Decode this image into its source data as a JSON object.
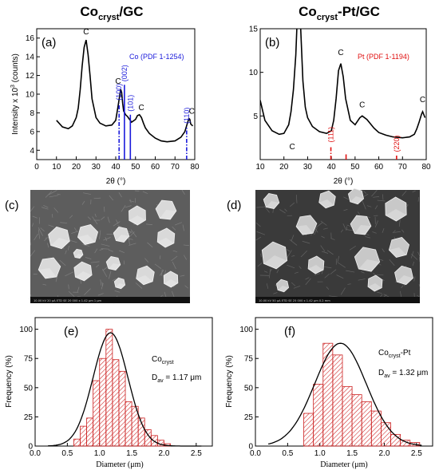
{
  "figure": {
    "left_title": {
      "main": "Co",
      "sub": "cryst",
      "tail": "/GC"
    },
    "right_title": {
      "main": "Co",
      "sub": "cryst",
      "tail": "-Pt/GC"
    },
    "panel_labels": {
      "a": "(a)",
      "b": "(b)",
      "c": "(c)",
      "d": "(d)",
      "e": "(e)",
      "f": "(f)"
    },
    "sem_bars": {
      "c": "10.00 kV   20 μA   ETD   SE   20 000 x   1.42 μm   1 μm",
      "d": "10.00 kV   50 μA   ETD   SE   25 000 x   1.42 μm   0.2 mm"
    },
    "colors": {
      "blue": "#1a1adb",
      "red": "#e01010",
      "hist": "#cc2020"
    }
  },
  "chart_data": [
    {
      "id": "a",
      "type": "line",
      "xlabel": "2θ (°)",
      "ylabel": "Intensity x 10^3 (counts)",
      "xlim": [
        0,
        80
      ],
      "ylim": [
        3,
        17
      ],
      "xticks": [
        0,
        10,
        20,
        30,
        40,
        50,
        60,
        70,
        80
      ],
      "yticks": [
        4,
        6,
        8,
        10,
        12,
        14,
        16
      ],
      "series": [
        {
          "x": [
            10,
            13,
            16,
            18,
            20,
            21,
            22,
            23,
            24,
            25,
            26,
            27,
            28,
            30,
            32,
            35,
            38,
            40,
            41,
            42,
            42.5,
            43,
            43.5,
            44,
            45,
            46,
            48,
            50,
            51,
            52,
            53,
            54,
            55,
            57,
            60,
            63,
            66,
            70,
            73,
            75,
            76,
            77,
            77.5,
            78,
            79
          ],
          "y": [
            7.2,
            6.5,
            6.3,
            6.6,
            7.5,
            8.5,
            10.5,
            13.0,
            15.0,
            15.8,
            14.2,
            12.0,
            9.5,
            7.5,
            6.9,
            6.6,
            6.7,
            7.2,
            8.5,
            9.8,
            10.5,
            10.2,
            9.0,
            8.2,
            7.8,
            7.6,
            7.0,
            7.3,
            7.7,
            7.8,
            7.5,
            6.9,
            6.4,
            5.8,
            5.3,
            5.0,
            4.9,
            5.0,
            5.4,
            6.0,
            6.7,
            7.4,
            7.3,
            6.8,
            6.6
          ]
        }
      ],
      "peak_labels": [
        {
          "x": 25,
          "y": 16.4,
          "text": "C"
        },
        {
          "x": 41.2,
          "y": 11.1,
          "text": "C"
        },
        {
          "x": 53,
          "y": 8.3,
          "text": "C"
        },
        {
          "x": 78.5,
          "y": 7.9,
          "text": "C"
        }
      ],
      "reference": {
        "label": "Co (PDF 1-1254)",
        "lines": [
          {
            "x": 41.7,
            "height": 6.0,
            "label": "(100)",
            "style": "dash-dot"
          },
          {
            "x": 44.4,
            "height": 8.0,
            "label": "(002)",
            "style": "solid"
          },
          {
            "x": 47.4,
            "height": 4.8,
            "label": "(101)",
            "style": "solid"
          },
          {
            "x": 75.9,
            "height": 3.5,
            "label": "(110)",
            "style": "dash-dot"
          }
        ]
      }
    },
    {
      "id": "b",
      "type": "line",
      "xlabel": "2θ (°)",
      "ylabel": "",
      "xlim": [
        10,
        80
      ],
      "ylim": [
        0,
        15
      ],
      "xticks": [
        10,
        20,
        30,
        40,
        50,
        60,
        70,
        80
      ],
      "yticks": [
        5,
        10,
        15
      ],
      "series": [
        {
          "x": [
            10,
            12,
            15,
            18,
            20,
            22,
            23,
            24,
            25,
            25.5,
            27,
            28,
            29,
            30,
            32,
            35,
            38,
            40,
            41,
            42,
            43,
            44,
            45,
            46,
            48,
            50,
            52,
            53,
            55,
            58,
            60,
            63,
            66,
            70,
            73,
            75,
            76,
            77,
            78,
            78.5,
            79.5
          ],
          "y": [
            6.8,
            4.5,
            3.3,
            2.9,
            3.0,
            4.0,
            5.5,
            8.0,
            12.0,
            15.5,
            15.5,
            9.0,
            6.0,
            4.8,
            3.8,
            3.2,
            3.0,
            3.3,
            4.5,
            7.0,
            10.2,
            11.0,
            9.5,
            7.0,
            4.5,
            4.0,
            4.8,
            5.0,
            4.6,
            3.6,
            3.1,
            2.8,
            2.6,
            2.5,
            2.6,
            2.9,
            3.5,
            4.3,
            5.2,
            5.5,
            4.8
          ]
        }
      ],
      "peak_labels": [
        {
          "x": 44,
          "y": 12.0,
          "text": "C"
        },
        {
          "x": 53,
          "y": 6.0,
          "text": "C"
        },
        {
          "x": 78.5,
          "y": 6.6,
          "text": "C"
        },
        {
          "x": 23.5,
          "y": 1.2,
          "text": "C"
        }
      ],
      "reference": {
        "label": "Pt (PDF 1-1194)",
        "lines": [
          {
            "x": 39.8,
            "height": 1.6,
            "label": "(111)",
            "style": "dash-dot"
          },
          {
            "x": 46.2,
            "height": 0.6,
            "label": "",
            "style": "solid"
          },
          {
            "x": 67.5,
            "height": 0.5,
            "label": "(220)",
            "style": "dash-dot"
          }
        ]
      }
    },
    {
      "id": "e",
      "type": "bar",
      "xlabel": "Diameter (μm)",
      "ylabel": "Frequency (%)",
      "xlim": [
        0,
        2.75
      ],
      "ylim": [
        0,
        110
      ],
      "xticks": [
        0.0,
        0.5,
        1.0,
        1.5,
        2.0,
        2.5
      ],
      "yticks": [
        0,
        25,
        50,
        75,
        100
      ],
      "bin_width": 0.1,
      "bin_starts": [
        0.6,
        0.7,
        0.8,
        0.9,
        1.0,
        1.1,
        1.2,
        1.3,
        1.4,
        1.5,
        1.6,
        1.7,
        1.8,
        1.9,
        2.0
      ],
      "values": [
        6,
        17,
        24,
        56,
        75,
        100,
        74,
        64,
        38,
        34,
        24,
        14,
        9,
        5,
        2
      ],
      "fit_curve": {
        "type": "gaussian",
        "center": 1.17,
        "peak": 97,
        "sigma": 0.27
      },
      "annotation": {
        "main": "Co",
        "sub": "cryst",
        "dav_text": "D",
        "dav_sub": "av",
        "dav_value": " = 1.17 μm"
      }
    },
    {
      "id": "f",
      "type": "bar",
      "xlabel": "Diameter (μm)",
      "ylabel": "Frequency (%)",
      "xlim": [
        0,
        2.75
      ],
      "ylim": [
        0,
        110
      ],
      "xticks": [
        0.0,
        0.5,
        1.0,
        1.5,
        2.0,
        2.5
      ],
      "yticks": [
        0,
        25,
        50,
        75,
        100
      ],
      "bin_width": 0.15,
      "bin_starts": [
        0.75,
        0.9,
        1.05,
        1.2,
        1.35,
        1.5,
        1.65,
        1.8,
        1.95,
        2.1,
        2.25,
        2.4
      ],
      "values": [
        28,
        53,
        88,
        78,
        51,
        44,
        38,
        30,
        20,
        10,
        5,
        3
      ],
      "fit_curve": {
        "type": "gaussian",
        "center": 1.32,
        "peak": 88,
        "sigma": 0.4
      },
      "annotation": {
        "main": "Co",
        "sub": "cryst",
        "tail": "-Pt",
        "dav_text": "D",
        "dav_sub": "av",
        "dav_value": " = 1.32 μm"
      }
    }
  ]
}
